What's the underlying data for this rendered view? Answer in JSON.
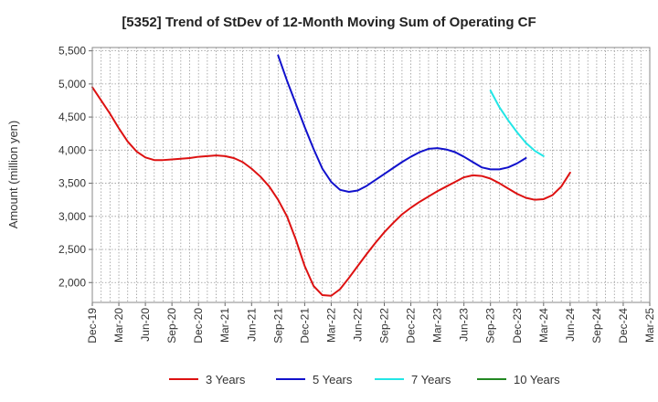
{
  "chart_data": {
    "type": "line",
    "title": "[5352]  Trend of StDev of 12-Month Moving Sum of Operating CF",
    "xlabel": "",
    "ylabel": "Amount (million yen)",
    "ylim": [
      1700,
      5550
    ],
    "yticks": [
      2000,
      2500,
      3000,
      3500,
      4000,
      4500,
      5000,
      5500
    ],
    "ytick_labels": [
      "2,000",
      "2,500",
      "3,000",
      "3,500",
      "4,000",
      "4,500",
      "5,000",
      "5,500"
    ],
    "x_categories": [
      "Dec-19",
      "Mar-20",
      "Jun-20",
      "Sep-20",
      "Dec-20",
      "Mar-21",
      "Jun-21",
      "Sep-21",
      "Dec-21",
      "Mar-22",
      "Jun-22",
      "Sep-22",
      "Dec-22",
      "Mar-23",
      "Jun-23",
      "Sep-23",
      "Dec-23",
      "Mar-24",
      "Jun-24",
      "Sep-24",
      "Dec-24",
      "Mar-25"
    ],
    "grid": true,
    "legend_position": "bottom",
    "series": [
      {
        "name": "3 Years",
        "color": "#dd1111",
        "start_index": 0,
        "values": [
          4950,
          4750,
          4550,
          4330,
          4130,
          3980,
          3890,
          3850,
          3850,
          3860,
          3870,
          3880,
          3900,
          3910,
          3920,
          3910,
          3880,
          3820,
          3720,
          3600,
          3450,
          3250,
          3000,
          2650,
          2250,
          1950,
          1810,
          1800,
          1900,
          2070,
          2250,
          2430,
          2600,
          2760,
          2900,
          3030,
          3130,
          3220,
          3300,
          3380,
          3450,
          3520,
          3590,
          3620,
          3610,
          3570,
          3500,
          3420,
          3340,
          3280,
          3250,
          3260,
          3320,
          3450,
          3660
        ]
      },
      {
        "name": "5 Years",
        "color": "#1111cc",
        "start_index": 21,
        "values": [
          5430,
          5050,
          4700,
          4350,
          4020,
          3720,
          3520,
          3400,
          3370,
          3390,
          3460,
          3550,
          3640,
          3730,
          3820,
          3900,
          3970,
          4020,
          4030,
          4010,
          3970,
          3900,
          3820,
          3740,
          3710,
          3710,
          3740,
          3800,
          3880
        ]
      },
      {
        "name": "7 Years",
        "color": "#22e6e6",
        "start_index": 45,
        "values": [
          4900,
          4650,
          4450,
          4270,
          4110,
          3990,
          3910
        ]
      },
      {
        "name": "10 Years",
        "color": "#228822",
        "start_index": 0,
        "values": []
      }
    ]
  }
}
